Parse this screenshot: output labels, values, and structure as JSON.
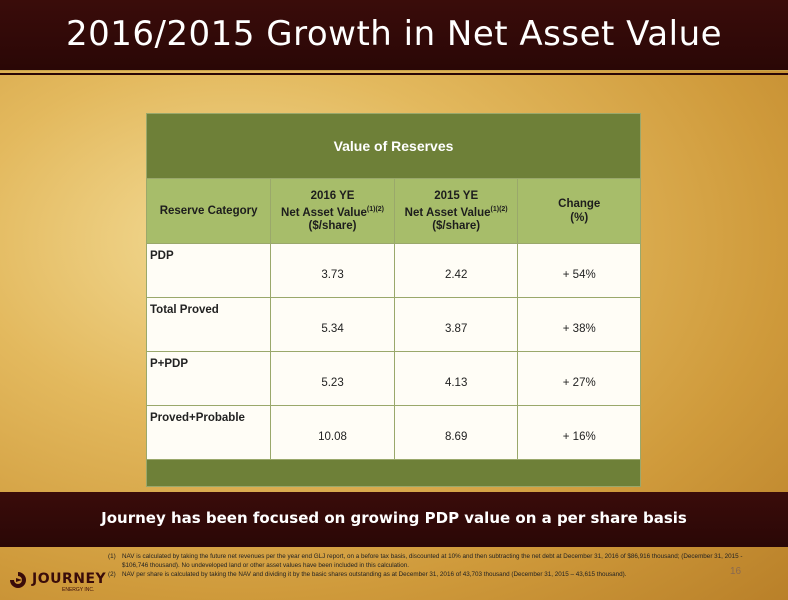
{
  "title": "2016/2015 Growth in Net Asset Value",
  "table": {
    "heading": "Value of Reserves",
    "columns": [
      {
        "line1": "Reserve Category",
        "line2": "",
        "sup": "",
        "line3": ""
      },
      {
        "line1": "2016 YE",
        "line2": "Net Asset Value",
        "sup": "(1)(2)",
        "line3": "($/share)"
      },
      {
        "line1": "2015 YE",
        "line2": "Net Asset Value",
        "sup": "(1)(2)",
        "line3": "($/share)"
      },
      {
        "line1": "Change",
        "line2": "(%)",
        "sup": "",
        "line3": ""
      }
    ],
    "rows": [
      {
        "category": "PDP",
        "ye2016": "3.73",
        "ye2015": "2.42",
        "change": "+ 54%"
      },
      {
        "category": "Total Proved",
        "ye2016": "5.34",
        "ye2015": "3.87",
        "change": "+ 38%"
      },
      {
        "category": "P+PDP",
        "ye2016": "5.23",
        "ye2015": "4.13",
        "change": "+ 27%"
      },
      {
        "category": "Proved+Probable",
        "ye2016": "10.08",
        "ye2015": "8.69",
        "change": "+ 16%"
      }
    ]
  },
  "banner": "Journey has been focused on growing PDP value on a per share basis",
  "notes": [
    {
      "num": "(1)",
      "text": "NAV is calculated by taking the future net revenues per the year end GLJ report, on a before tax basis, discounted at 10% and then subtracting the net debt at December 31, 2016 of $86,916 thousand; (December 31, 2015 - $106,746 thousand). No undeveloped land or other asset values have been included in this calculation."
    },
    {
      "num": "(2)",
      "text": "NAV per share is calculated by taking the NAV and dividing it by the basic shares outstanding as at December 31, 2016 of 43,703 thousand (December 31, 2015 – 43,615 thousand)."
    }
  ],
  "page_number": "16",
  "logo": {
    "name": "JOURNEY",
    "sub": "ENERGY INC."
  },
  "colors": {
    "dark": "#2a0706",
    "green_dark": "#6e8038",
    "green_light": "#a7bd6a"
  }
}
